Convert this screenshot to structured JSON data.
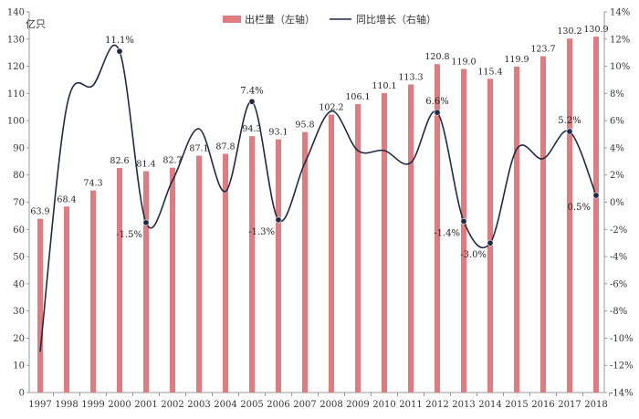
{
  "chart_data": {
    "type": "bar+line",
    "left_axis_unit": "亿只",
    "legend": {
      "bar_label": "出栏量（左轴）",
      "line_label": "同比增长（右轴）"
    },
    "categories": [
      "1997",
      "1998",
      "1999",
      "2000",
      "2001",
      "2002",
      "2003",
      "2004",
      "2005",
      "2006",
      "2007",
      "2008",
      "2009",
      "2010",
      "2011",
      "2012",
      "2013",
      "2014",
      "2015",
      "2016",
      "2017",
      "2018"
    ],
    "bar_series": {
      "name": "出栏量（左轴）",
      "axis": "left",
      "values": [
        63.9,
        68.4,
        74.3,
        82.6,
        81.4,
        82.7,
        87.1,
        87.8,
        94.3,
        93.1,
        95.8,
        102.2,
        106.1,
        110.1,
        113.3,
        120.8,
        119.0,
        115.4,
        119.9,
        123.7,
        130.2,
        130.9
      ],
      "labels": [
        "63.9",
        "68.4",
        "74.3",
        "82.6",
        "81.4",
        "82.7",
        "87.1",
        "87.8",
        "94.3",
        "93.1",
        "95.8",
        "102.2",
        "106.1",
        "110.1",
        "113.3",
        "120.8",
        "119.0",
        "115.4",
        "119.9",
        "123.7",
        "130.2",
        "130.9"
      ],
      "color": "#e07c80"
    },
    "line_series": {
      "name": "同比增长（右轴）",
      "axis": "right",
      "unit": "%",
      "values": [
        -11.0,
        7.0,
        8.6,
        11.1,
        -1.5,
        1.6,
        5.4,
        0.8,
        7.4,
        -1.3,
        2.9,
        6.7,
        3.8,
        3.8,
        2.9,
        6.6,
        -1.4,
        -3.0,
        3.9,
        3.2,
        5.2,
        0.5
      ],
      "marked_points": [
        {
          "index": 3,
          "label": "11.1%"
        },
        {
          "index": 4,
          "label": "-1.5%"
        },
        {
          "index": 8,
          "label": "7.4%"
        },
        {
          "index": 9,
          "label": "-1.3%"
        },
        {
          "index": 15,
          "label": "6.6%"
        },
        {
          "index": 16,
          "label": "-1.4%"
        },
        {
          "index": 17,
          "label": "-3.0%"
        },
        {
          "index": 20,
          "label": "5.2%"
        },
        {
          "index": 21,
          "label": "0.5%"
        }
      ],
      "color": "#1f2a44"
    },
    "left_axis": {
      "min": 0,
      "max": 140,
      "step": 10,
      "tick_labels": [
        "0",
        "10",
        "20",
        "30",
        "40",
        "50",
        "60",
        "70",
        "80",
        "90",
        "100",
        "110",
        "120",
        "130",
        "140"
      ]
    },
    "right_axis": {
      "min": -14,
      "max": 14,
      "step": 2,
      "tick_labels": [
        "-14%",
        "-12%",
        "-10%",
        "-8%",
        "-6%",
        "-4%",
        "-2%",
        "0%",
        "2%",
        "4%",
        "6%",
        "8%",
        "10%",
        "12%",
        "14%"
      ]
    },
    "grid": false,
    "legend_position": "top-center"
  }
}
